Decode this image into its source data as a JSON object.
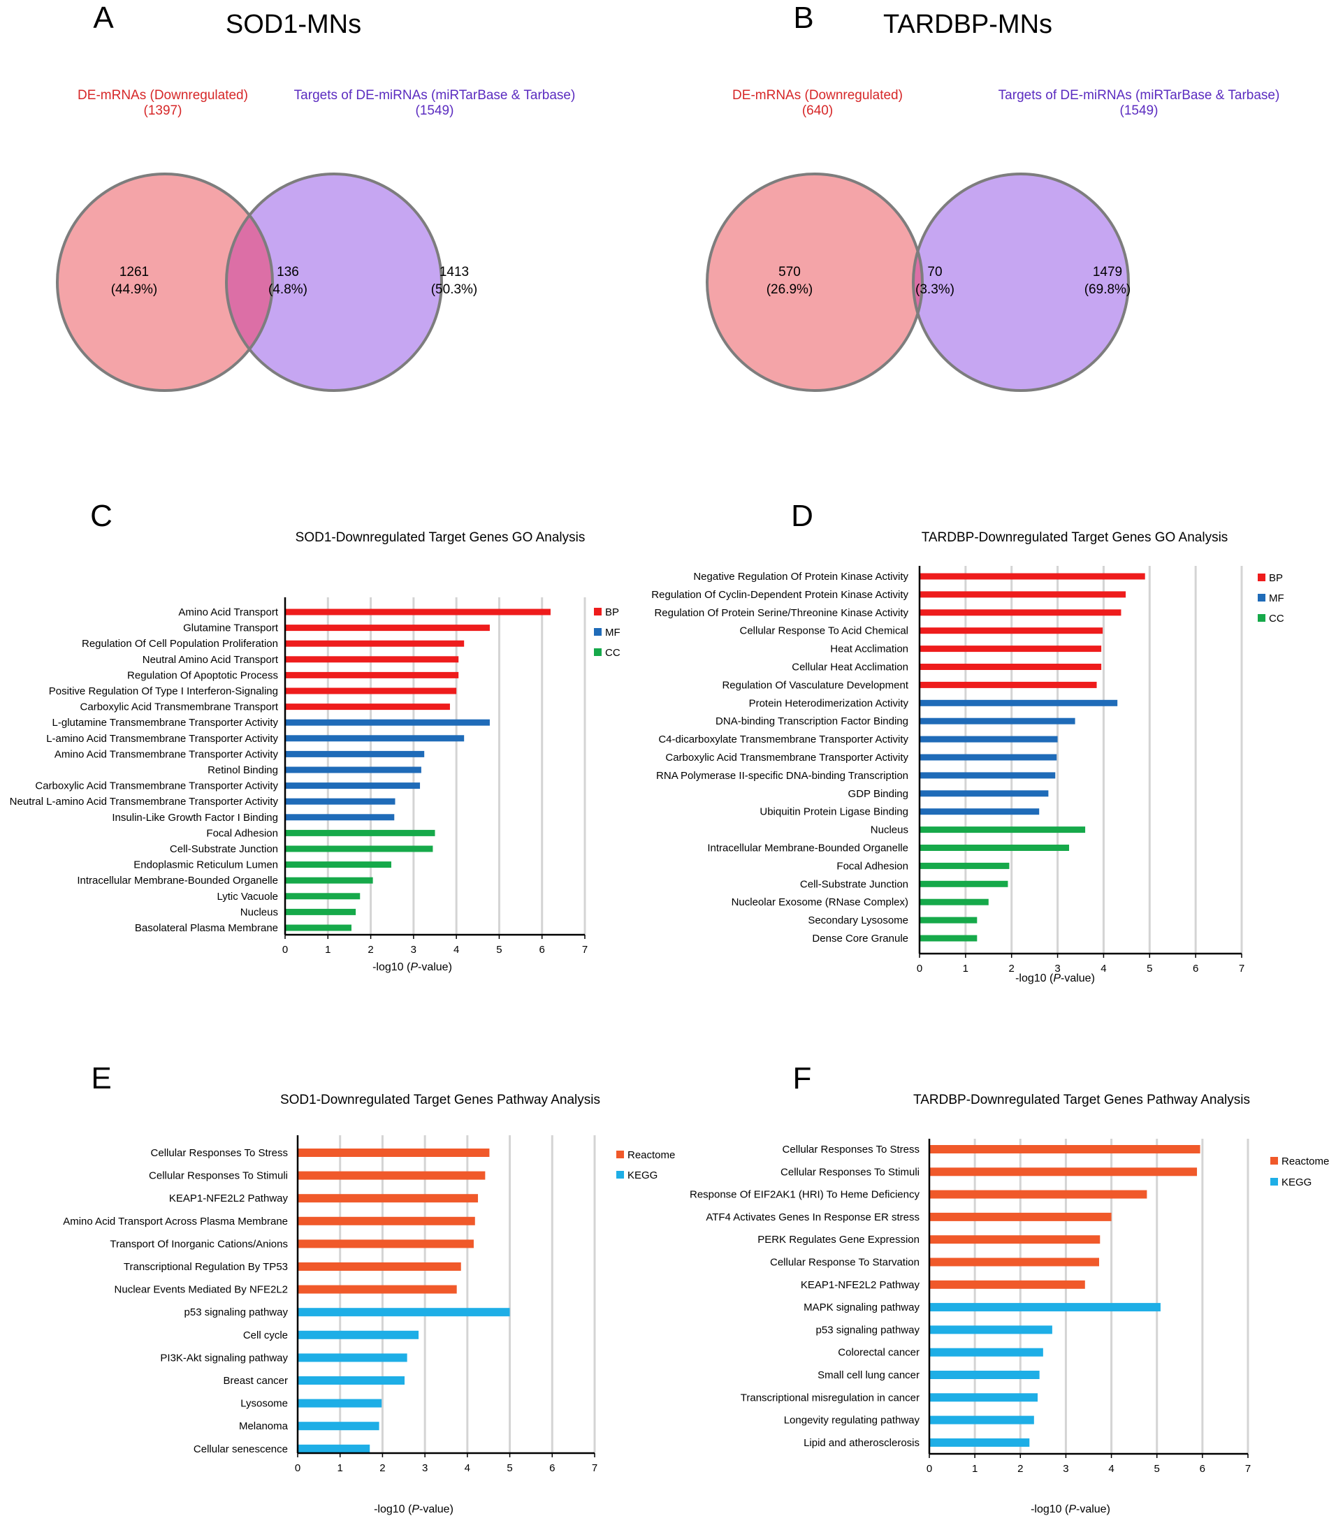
{
  "chart_data": [
    {
      "panel": "A",
      "type": "venn",
      "title": "SOD1-MNs",
      "sets": [
        {
          "name": "DE-mRNAs (Downregulated)",
          "size_label": "(1397)",
          "color": "#d62728",
          "fill": "#f4a4a8"
        },
        {
          "name": "Targets of DE-miRNAs (miRTarBase & Tarbase)",
          "size_label": "(1549)",
          "color": "#5b2cc0",
          "fill": "#c6a6f2"
        }
      ],
      "regions": [
        {
          "count": "1261",
          "percent": "(44.9%)"
        },
        {
          "count": "136",
          "percent": "(4.8%)"
        },
        {
          "count": "1413",
          "percent": "(50.3%)"
        }
      ]
    },
    {
      "panel": "B",
      "type": "venn",
      "title": "TARDBP-MNs",
      "sets": [
        {
          "name": "DE-mRNAs (Downregulated)",
          "size_label": "(640)",
          "color": "#d62728",
          "fill": "#f4a4a8"
        },
        {
          "name": "Targets of DE-miRNAs (miRTarBase & Tarbase)",
          "size_label": "(1549)",
          "color": "#5b2cc0",
          "fill": "#c6a6f2"
        }
      ],
      "regions": [
        {
          "count": "570",
          "percent": "(26.9%)"
        },
        {
          "count": "70",
          "percent": "(3.3%)"
        },
        {
          "count": "1479",
          "percent": "(69.8%)"
        }
      ]
    },
    {
      "panel": "C",
      "type": "bar",
      "orientation": "horizontal",
      "title": "SOD1-Downregulated Target Genes GO Analysis",
      "xlabel_prefix": "-log10 (",
      "xlabel_italic": "P",
      "xlabel_suffix": "-value)",
      "xlim": [
        0,
        7
      ],
      "xticks": [
        0,
        1,
        2,
        3,
        4,
        5,
        6,
        7
      ],
      "legend": [
        {
          "name": "BP",
          "color": "#ee1c1c"
        },
        {
          "name": "MF",
          "color": "#1f6bb8"
        },
        {
          "name": "CC",
          "color": "#16a94a"
        }
      ],
      "bars": [
        {
          "label": "Amino Acid Transport",
          "value": 6.2,
          "group": "BP"
        },
        {
          "label": "Glutamine Transport",
          "value": 4.78,
          "group": "BP"
        },
        {
          "label": "Regulation Of Cell Population Proliferation",
          "value": 4.18,
          "group": "BP"
        },
        {
          "label": "Neutral Amino Acid Transport",
          "value": 4.05,
          "group": "BP"
        },
        {
          "label": "Regulation Of Apoptotic Process",
          "value": 4.05,
          "group": "BP"
        },
        {
          "label": "Positive Regulation Of Type I Interferon-Signaling",
          "value": 4.0,
          "group": "BP"
        },
        {
          "label": "Carboxylic Acid Transmembrane Transport",
          "value": 3.85,
          "group": "BP"
        },
        {
          "label": "L-glutamine Transmembrane Transporter Activity",
          "value": 4.78,
          "group": "MF"
        },
        {
          "label": "L-amino Acid Transmembrane Transporter Activity",
          "value": 4.18,
          "group": "MF"
        },
        {
          "label": "Amino Acid Transmembrane Transporter Activity",
          "value": 3.25,
          "group": "MF"
        },
        {
          "label": "Retinol Binding",
          "value": 3.18,
          "group": "MF"
        },
        {
          "label": "Carboxylic Acid Transmembrane Transporter Activity",
          "value": 3.15,
          "group": "MF"
        },
        {
          "label": "Neutral L-amino Acid Transmembrane Transporter Activity",
          "value": 2.57,
          "group": "MF"
        },
        {
          "label": "Insulin-Like Growth Factor I Binding",
          "value": 2.55,
          "group": "MF"
        },
        {
          "label": "Focal Adhesion",
          "value": 3.5,
          "group": "CC"
        },
        {
          "label": "Cell-Substrate Junction",
          "value": 3.45,
          "group": "CC"
        },
        {
          "label": "Endoplasmic Reticulum Lumen",
          "value": 2.48,
          "group": "CC"
        },
        {
          "label": "Intracellular Membrane-Bounded Organelle",
          "value": 2.05,
          "group": "CC"
        },
        {
          "label": "Lytic Vacuole",
          "value": 1.75,
          "group": "CC"
        },
        {
          "label": "Nucleus",
          "value": 1.65,
          "group": "CC"
        },
        {
          "label": "Basolateral Plasma Membrane",
          "value": 1.55,
          "group": "CC"
        }
      ]
    },
    {
      "panel": "D",
      "type": "bar",
      "orientation": "horizontal",
      "title": "TARDBP-Downregulated Target Genes GO Analysis",
      "xlabel_prefix": "-log10 (",
      "xlabel_italic": "P",
      "xlabel_suffix": "-value)",
      "xlim": [
        0,
        7
      ],
      "xticks": [
        0,
        1,
        2,
        3,
        4,
        5,
        6,
        7
      ],
      "legend": [
        {
          "name": "BP",
          "color": "#ee1c1c"
        },
        {
          "name": "MF",
          "color": "#1f6bb8"
        },
        {
          "name": "CC",
          "color": "#16a94a"
        }
      ],
      "bars": [
        {
          "label": "Negative Regulation Of Protein Kinase Activity",
          "value": 4.9,
          "group": "BP"
        },
        {
          "label": "Regulation Of Cyclin-Dependent Protein Kinase Activity",
          "value": 4.48,
          "group": "BP"
        },
        {
          "label": "Regulation Of Protein Serine/Threonine Kinase Activity",
          "value": 4.38,
          "group": "BP"
        },
        {
          "label": "Cellular Response To Acid Chemical",
          "value": 3.98,
          "group": "BP"
        },
        {
          "label": "Heat Acclimation",
          "value": 3.95,
          "group": "BP"
        },
        {
          "label": "Cellular Heat Acclimation",
          "value": 3.95,
          "group": "BP"
        },
        {
          "label": "Regulation Of Vasculature Development",
          "value": 3.85,
          "group": "BP"
        },
        {
          "label": "Protein Heterodimerization Activity",
          "value": 4.3,
          "group": "MF"
        },
        {
          "label": "DNA-binding Transcription Factor Binding",
          "value": 3.38,
          "group": "MF"
        },
        {
          "label": "C4-dicarboxylate Transmembrane Transporter Activity",
          "value": 3.0,
          "group": "MF"
        },
        {
          "label": "Carboxylic Acid Transmembrane Transporter Activity",
          "value": 2.98,
          "group": "MF"
        },
        {
          "label": "RNA Polymerase II-specific DNA-binding Transcription",
          "value": 2.95,
          "group": "MF"
        },
        {
          "label": "GDP Binding",
          "value": 2.8,
          "group": "MF"
        },
        {
          "label": "Ubiquitin Protein Ligase Binding",
          "value": 2.6,
          "group": "MF"
        },
        {
          "label": "Nucleus",
          "value": 3.6,
          "group": "CC"
        },
        {
          "label": "Intracellular Membrane-Bounded Organelle",
          "value": 3.25,
          "group": "CC"
        },
        {
          "label": "Focal Adhesion",
          "value": 1.95,
          "group": "CC"
        },
        {
          "label": "Cell-Substrate Junction",
          "value": 1.92,
          "group": "CC"
        },
        {
          "label": "Nucleolar Exosome (RNase Complex)",
          "value": 1.5,
          "group": "CC"
        },
        {
          "label": "Secondary Lysosome",
          "value": 1.25,
          "group": "CC"
        },
        {
          "label": "Dense Core Granule",
          "value": 1.25,
          "group": "CC"
        }
      ]
    },
    {
      "panel": "E",
      "type": "bar",
      "orientation": "horizontal",
      "title": "SOD1-Downregulated Target Genes Pathway Analysis",
      "xlabel_prefix": "-log10 (",
      "xlabel_italic": "P",
      "xlabel_suffix": "-value)",
      "xlim": [
        0,
        7
      ],
      "xticks": [
        0,
        1,
        2,
        3,
        4,
        5,
        6,
        7
      ],
      "legend": [
        {
          "name": "Reactome",
          "color": "#f0592a"
        },
        {
          "name": "KEGG",
          "color": "#1eaee6"
        }
      ],
      "bars": [
        {
          "label": "Cellular Responses To Stress",
          "value": 4.52,
          "group": "Reactome"
        },
        {
          "label": "Cellular Responses To Stimuli",
          "value": 4.42,
          "group": "Reactome"
        },
        {
          "label": "KEAP1-NFE2L2 Pathway",
          "value": 4.25,
          "group": "Reactome"
        },
        {
          "label": "Amino Acid Transport Across Plasma Membrane",
          "value": 4.18,
          "group": "Reactome"
        },
        {
          "label": "Transport Of Inorganic Cations/Anions",
          "value": 4.15,
          "group": "Reactome"
        },
        {
          "label": "Transcriptional Regulation By TP53",
          "value": 3.85,
          "group": "Reactome"
        },
        {
          "label": "Nuclear Events Mediated By NFE2L2",
          "value": 3.75,
          "group": "Reactome"
        },
        {
          "label": "p53 signaling pathway",
          "value": 5.0,
          "group": "KEGG"
        },
        {
          "label": "Cell cycle",
          "value": 2.85,
          "group": "KEGG"
        },
        {
          "label": "PI3K-Akt signaling pathway",
          "value": 2.58,
          "group": "KEGG"
        },
        {
          "label": "Breast cancer",
          "value": 2.52,
          "group": "KEGG"
        },
        {
          "label": "Lysosome",
          "value": 1.98,
          "group": "KEGG"
        },
        {
          "label": "Melanoma",
          "value": 1.92,
          "group": "KEGG"
        },
        {
          "label": "Cellular senescence",
          "value": 1.7,
          "group": "KEGG"
        }
      ]
    },
    {
      "panel": "F",
      "type": "bar",
      "orientation": "horizontal",
      "title": "TARDBP-Downregulated Target Genes Pathway Analysis",
      "xlabel_prefix": "-log10 (",
      "xlabel_italic": "P",
      "xlabel_suffix": "-value)",
      "xlim": [
        0,
        7
      ],
      "xticks": [
        0,
        1,
        2,
        3,
        4,
        5,
        6,
        7
      ],
      "legend": [
        {
          "name": "Reactome",
          "color": "#f0592a"
        },
        {
          "name": "KEGG",
          "color": "#1eaee6"
        }
      ],
      "bars": [
        {
          "label": "Cellular Responses To Stress",
          "value": 5.95,
          "group": "Reactome"
        },
        {
          "label": "Cellular Responses To Stimuli",
          "value": 5.88,
          "group": "Reactome"
        },
        {
          "label": "Response Of EIF2AK1 (HRI) To Heme Deficiency",
          "value": 4.78,
          "group": "Reactome"
        },
        {
          "label": "ATF4 Activates Genes In Response ER stress",
          "value": 4.0,
          "group": "Reactome"
        },
        {
          "label": "PERK Regulates Gene Expression",
          "value": 3.75,
          "group": "Reactome"
        },
        {
          "label": "Cellular Response To Starvation",
          "value": 3.73,
          "group": "Reactome"
        },
        {
          "label": "KEAP1-NFE2L2 Pathway",
          "value": 3.42,
          "group": "Reactome"
        },
        {
          "label": "MAPK signaling pathway",
          "value": 5.08,
          "group": "KEGG"
        },
        {
          "label": "p53 signaling pathway",
          "value": 2.7,
          "group": "KEGG"
        },
        {
          "label": "Colorectal cancer",
          "value": 2.5,
          "group": "KEGG"
        },
        {
          "label": "Small cell lung cancer",
          "value": 2.42,
          "group": "KEGG"
        },
        {
          "label": "Transcriptional misregulation in cancer",
          "value": 2.38,
          "group": "KEGG"
        },
        {
          "label": "Longevity regulating pathway",
          "value": 2.3,
          "group": "KEGG"
        },
        {
          "label": "Lipid and atherosclerosis",
          "value": 2.2,
          "group": "KEGG"
        }
      ]
    }
  ]
}
